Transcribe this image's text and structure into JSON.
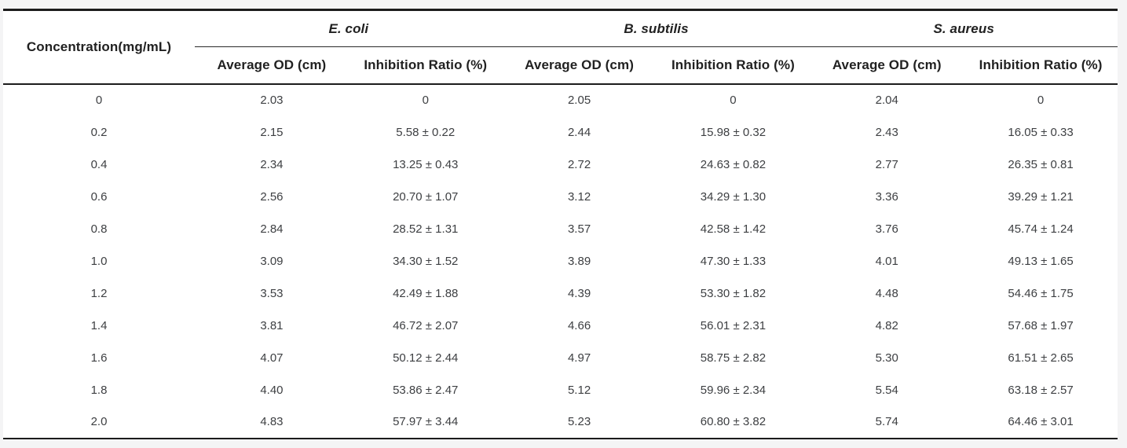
{
  "colors": {
    "page_background": "#f4f4f5",
    "table_background": "#ffffff",
    "rule_dark": "#1c1c1c",
    "header_text": "#212121",
    "data_text": "#3d3f42"
  },
  "table": {
    "concentration_header": "Concentration(mg/mL)",
    "species": [
      "E. coli",
      "B. subtilis",
      "S. aureus"
    ],
    "subheaders": [
      "Average OD (cm)",
      "Inhibition Ratio (%)"
    ],
    "rows": [
      [
        "0",
        "2.03",
        "0",
        "2.05",
        "0",
        "2.04",
        "0"
      ],
      [
        "0.2",
        "2.15",
        "5.58 ± 0.22",
        "2.44",
        "15.98 ± 0.32",
        "2.43",
        "16.05 ± 0.33"
      ],
      [
        "0.4",
        "2.34",
        "13.25 ± 0.43",
        "2.72",
        "24.63 ± 0.82",
        "2.77",
        "26.35 ± 0.81"
      ],
      [
        "0.6",
        "2.56",
        "20.70 ± 1.07",
        "3.12",
        "34.29 ± 1.30",
        "3.36",
        "39.29 ± 1.21"
      ],
      [
        "0.8",
        "2.84",
        "28.52 ± 1.31",
        "3.57",
        "42.58 ± 1.42",
        "3.76",
        "45.74 ± 1.24"
      ],
      [
        "1.0",
        "3.09",
        "34.30 ± 1.52",
        "3.89",
        "47.30 ± 1.33",
        "4.01",
        "49.13 ± 1.65"
      ],
      [
        "1.2",
        "3.53",
        "42.49 ± 1.88",
        "4.39",
        "53.30 ± 1.82",
        "4.48",
        "54.46 ± 1.75"
      ],
      [
        "1.4",
        "3.81",
        "46.72 ± 2.07",
        "4.66",
        "56.01 ± 2.31",
        "4.82",
        "57.68 ± 1.97"
      ],
      [
        "1.6",
        "4.07",
        "50.12 ± 2.44",
        "4.97",
        "58.75 ± 2.82",
        "5.30",
        "61.51 ± 2.65"
      ],
      [
        "1.8",
        "4.40",
        "53.86 ± 2.47",
        "5.12",
        "59.96 ± 2.34",
        "5.54",
        "63.18 ± 2.57"
      ],
      [
        "2.0",
        "4.83",
        "57.97 ± 3.44",
        "5.23",
        "60.80 ± 3.82",
        "5.74",
        "64.46 ± 3.01"
      ]
    ]
  },
  "chart_data": {
    "type": "table",
    "title": "",
    "xlabel": "Concentration(mg/mL)",
    "categories": [
      0,
      0.2,
      0.4,
      0.6,
      0.8,
      1.0,
      1.2,
      1.4,
      1.6,
      1.8,
      2.0
    ],
    "series": [
      {
        "name": "E. coli Average OD (cm)",
        "values": [
          2.03,
          2.15,
          2.34,
          2.56,
          2.84,
          3.09,
          3.53,
          3.81,
          4.07,
          4.4,
          4.83
        ]
      },
      {
        "name": "E. coli Inhibition Ratio (%)",
        "values": [
          0,
          5.58,
          13.25,
          20.7,
          28.52,
          34.3,
          42.49,
          46.72,
          50.12,
          53.86,
          57.97
        ],
        "sd": [
          0,
          0.22,
          0.43,
          1.07,
          1.31,
          1.52,
          1.88,
          2.07,
          2.44,
          2.47,
          3.44
        ]
      },
      {
        "name": "B. subtilis Average OD (cm)",
        "values": [
          2.05,
          2.44,
          2.72,
          3.12,
          3.57,
          3.89,
          4.39,
          4.66,
          4.97,
          5.12,
          5.23
        ]
      },
      {
        "name": "B. subtilis Inhibition Ratio (%)",
        "values": [
          0,
          15.98,
          24.63,
          34.29,
          42.58,
          47.3,
          53.3,
          56.01,
          58.75,
          59.96,
          60.8
        ],
        "sd": [
          0,
          0.32,
          0.82,
          1.3,
          1.42,
          1.33,
          1.82,
          2.31,
          2.82,
          2.34,
          3.82
        ]
      },
      {
        "name": "S. aureus Average OD (cm)",
        "values": [
          2.04,
          2.43,
          2.77,
          3.36,
          3.76,
          4.01,
          4.48,
          4.82,
          5.3,
          5.54,
          5.74
        ]
      },
      {
        "name": "S. aureus Inhibition Ratio (%)",
        "values": [
          0,
          16.05,
          26.35,
          39.29,
          45.74,
          49.13,
          54.46,
          57.68,
          61.51,
          63.18,
          64.46
        ],
        "sd": [
          0,
          0.33,
          0.81,
          1.21,
          1.24,
          1.65,
          1.75,
          1.97,
          2.65,
          2.57,
          3.01
        ]
      }
    ]
  }
}
